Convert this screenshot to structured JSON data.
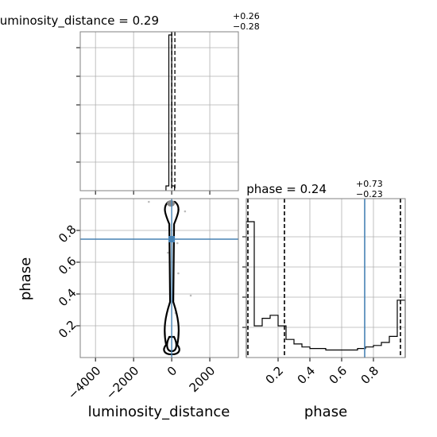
{
  "chart_data": [
    {
      "type": "histogram",
      "panel": "luminosity_distance-marginal",
      "title_param": "luminosity_distance",
      "title_value": "0.29",
      "title_plus": "+0.26",
      "title_minus": "−0.28",
      "x": [
        -300,
        -150,
        0,
        150
      ],
      "values": [
        0.03,
        0.98,
        0.03
      ],
      "xlim": [
        -4800,
        3500
      ],
      "median": 0.29,
      "quantiles": [
        0.01,
        0.55
      ],
      "grid": true
    },
    {
      "type": "contour",
      "panel": "phase-vs-luminosity_distance",
      "xlabel": "luminosity_distance",
      "ylabel": "phase",
      "xlim": [
        -4800,
        3500
      ],
      "ylim": [
        0.0,
        1.0
      ],
      "xticks": [
        "−4000",
        "−2000",
        "0",
        "2000"
      ],
      "xtick_values": [
        -4000,
        -2000,
        0,
        2000
      ],
      "yticks": [
        "0.2",
        "0.4",
        "0.6",
        "0.8"
      ],
      "ytick_values": [
        0.2,
        0.4,
        0.6,
        0.8
      ],
      "truth": {
        "luminosity_distance": 0.0,
        "phase": 0.745
      },
      "scatter": [
        [
          -1200,
          0.98
        ],
        [
          350,
          0.93
        ],
        [
          700,
          0.92
        ],
        [
          350,
          0.53
        ],
        [
          1000,
          0.39
        ],
        [
          300,
          0.72
        ],
        [
          -200,
          0.66
        ],
        [
          200,
          0.28
        ]
      ],
      "grid": true
    },
    {
      "type": "histogram",
      "panel": "phase-marginal",
      "xlabel": "phase",
      "title_param": "phase",
      "title_value": "0.24",
      "title_plus": "+0.73",
      "title_minus": "−0.23",
      "bin_edges": [
        0.0,
        0.05,
        0.1,
        0.15,
        0.2,
        0.25,
        0.3,
        0.35,
        0.4,
        0.45,
        0.5,
        0.55,
        0.6,
        0.65,
        0.7,
        0.75,
        0.8,
        0.85,
        0.9,
        0.95,
        1.0
      ],
      "values": [
        0.9,
        0.21,
        0.26,
        0.28,
        0.21,
        0.12,
        0.09,
        0.07,
        0.06,
        0.06,
        0.05,
        0.05,
        0.05,
        0.05,
        0.06,
        0.07,
        0.08,
        0.1,
        0.14,
        0.38
      ],
      "xlim": [
        0.0,
        1.0
      ],
      "xticks": [
        "0.2",
        "0.4",
        "0.6",
        "0.8"
      ],
      "xtick_values": [
        0.2,
        0.4,
        0.6,
        0.8
      ],
      "median": 0.24,
      "quantiles": [
        0.01,
        0.97
      ],
      "truth": 0.745,
      "grid": true
    }
  ],
  "colors": {
    "truth": "#4682b4",
    "grid": "#b0b0b0",
    "hist": "#000000",
    "scatter": "#bbbbbb"
  }
}
